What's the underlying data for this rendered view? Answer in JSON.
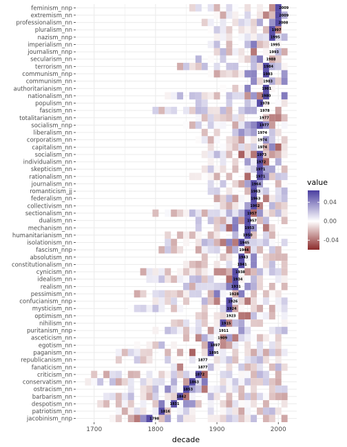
{
  "chart_data": {
    "type": "heatmap",
    "xlabel": "decade",
    "ylabel": "",
    "xlim": [
      1670,
      2030
    ],
    "x_ticks": [
      1700,
      1800,
      1900,
      2000
    ],
    "x_tick_labels": [
      "1700",
      "1800",
      "1900",
      "2000"
    ],
    "decades": [
      1690,
      1700,
      1710,
      1720,
      1730,
      1740,
      1750,
      1760,
      1770,
      1780,
      1790,
      1800,
      1810,
      1820,
      1830,
      1840,
      1850,
      1860,
      1870,
      1880,
      1890,
      1900,
      1910,
      1920,
      1930,
      1940,
      1950,
      1960,
      1970,
      1980,
      1990,
      2000,
      2010
    ],
    "rows": [
      {
        "term": "feminism_nnp",
        "peak": 2009
      },
      {
        "term": "extremism_nn",
        "peak": 2009
      },
      {
        "term": "professionalism_nn",
        "peak": 2008
      },
      {
        "term": "pluralism_nn",
        "peak": 1997
      },
      {
        "term": "nazism_nnp",
        "peak": 1995
      },
      {
        "term": "imperialism_nn",
        "peak": 1995
      },
      {
        "term": "journalism_nnp",
        "peak": 1993
      },
      {
        "term": "secularism_nn",
        "peak": 1988
      },
      {
        "term": "terrorism_nn",
        "peak": 1984
      },
      {
        "term": "communism_nnp",
        "peak": 1983
      },
      {
        "term": "communism_nn",
        "peak": 1983
      },
      {
        "term": "authoritarianism_nn",
        "peak": 1981
      },
      {
        "term": "nationalism_nn",
        "peak": 1980
      },
      {
        "term": "populism_nn",
        "peak": 1978
      },
      {
        "term": "fascism_nn",
        "peak": 1978
      },
      {
        "term": "totalitarianism_nn",
        "peak": 1977
      },
      {
        "term": "socialism_nnp",
        "peak": 1977
      },
      {
        "term": "liberalism_nn",
        "peak": 1974
      },
      {
        "term": "corporatism_nn",
        "peak": 1974
      },
      {
        "term": "capitalism_nn",
        "peak": 1974
      },
      {
        "term": "socialism_nn",
        "peak": 1973
      },
      {
        "term": "individualism_nn",
        "peak": 1972
      },
      {
        "term": "skepticism_nn",
        "peak": 1971
      },
      {
        "term": "rationalism_nn",
        "peak": 1971
      },
      {
        "term": "journalism_nn",
        "peak": 1964
      },
      {
        "term": "romanticism_jj",
        "peak": 1963
      },
      {
        "term": "federalism_nn",
        "peak": 1963
      },
      {
        "term": "collectivism_nn",
        "peak": 1962
      },
      {
        "term": "sectionalism_nn",
        "peak": 1957
      },
      {
        "term": "dualism_nn",
        "peak": 1957
      },
      {
        "term": "mechanism_nn",
        "peak": 1953
      },
      {
        "term": "humanitarianism_nn",
        "peak": 1950
      },
      {
        "term": "isolationism_nn",
        "peak": 1945
      },
      {
        "term": "fascism_nnp",
        "peak": 1944
      },
      {
        "term": "absolutism_nn",
        "peak": 1943
      },
      {
        "term": "constitutionalism_nn",
        "peak": 1941
      },
      {
        "term": "cynicism_nn",
        "peak": 1938
      },
      {
        "term": "idealism_nn",
        "peak": 1934
      },
      {
        "term": "realism_nn",
        "peak": 1931
      },
      {
        "term": "pessimism_nn",
        "peak": 1928
      },
      {
        "term": "confucianism_nnp",
        "peak": 1926
      },
      {
        "term": "mysticism_nn",
        "peak": 1924
      },
      {
        "term": "optimism_nn",
        "peak": 1923
      },
      {
        "term": "nihilism_nn",
        "peak": 1915
      },
      {
        "term": "puritanism_nnp",
        "peak": 1911
      },
      {
        "term": "asceticism_nn",
        "peak": 1909
      },
      {
        "term": "egotism_nn",
        "peak": 1897
      },
      {
        "term": "paganism_nn",
        "peak": 1895
      },
      {
        "term": "republicanism_nn",
        "peak": 1877
      },
      {
        "term": "fanaticism_nn",
        "peak": 1877
      },
      {
        "term": "criticism_nn",
        "peak": 1872
      },
      {
        "term": "conservatism_nn",
        "peak": 1863
      },
      {
        "term": "ostracism_nn",
        "peak": 1853
      },
      {
        "term": "barbarism_nn",
        "peak": 1842
      },
      {
        "term": "despotism_nn",
        "peak": 1831
      },
      {
        "term": "patriotism_nn",
        "peak": 1816
      },
      {
        "term": "jacobinism_nnp",
        "peak": 1798
      }
    ],
    "legend": {
      "title": "value",
      "ticks": [
        0.04,
        0.0,
        -0.04
      ],
      "tick_labels": [
        "0.04",
        "0.00",
        "-0.04"
      ],
      "range": [
        -0.06,
        0.065
      ],
      "placement": "right"
    },
    "colors": {
      "low": "#8b2a2a",
      "mid": "#ffffff",
      "high": "#4a3ea0",
      "panel_background": "#ffffff",
      "grid": "#ebebeb"
    },
    "grid": true
  }
}
